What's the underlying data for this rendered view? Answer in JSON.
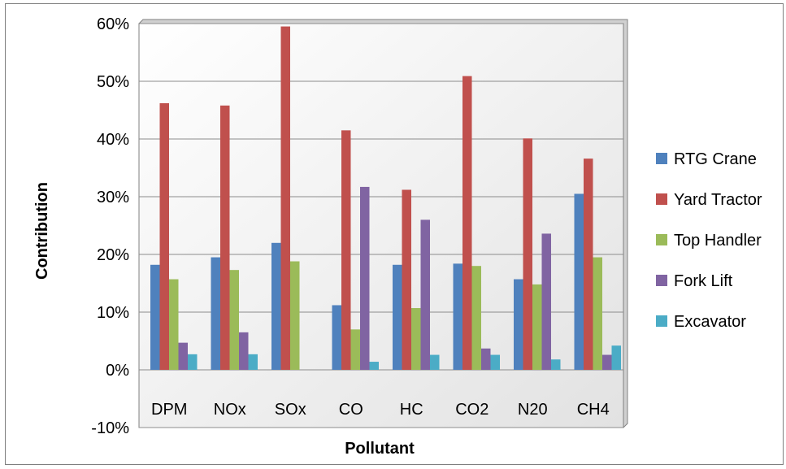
{
  "chart_data": {
    "type": "bar",
    "title": "",
    "xlabel": "Pollutant",
    "ylabel": "Contribution",
    "ylim": [
      -0.1,
      0.6
    ],
    "yticks": [
      -0.1,
      0,
      0.1,
      0.2,
      0.3,
      0.4,
      0.5,
      0.6
    ],
    "ytick_labels": [
      "-10%",
      "0%",
      "10%",
      "20%",
      "30%",
      "40%",
      "50%",
      "60%"
    ],
    "grid": true,
    "legend_position": "right",
    "categories": [
      "DPM",
      "NOx",
      "SOx",
      "CO",
      "HC",
      "CO2",
      "N20",
      "CH4"
    ],
    "series": [
      {
        "name": "RTG Crane",
        "color": "#4F81BD",
        "values": [
          0.182,
          0.195,
          0.22,
          0.112,
          0.182,
          0.184,
          0.157,
          0.305
        ]
      },
      {
        "name": "Yard Tractor",
        "color": "#C0504D",
        "values": [
          0.462,
          0.458,
          0.595,
          0.415,
          0.312,
          0.509,
          0.401,
          0.366
        ]
      },
      {
        "name": "Top Handler",
        "color": "#9BBB59",
        "values": [
          0.157,
          0.173,
          0.188,
          0.07,
          0.107,
          0.18,
          0.148,
          0.195
        ]
      },
      {
        "name": "Fork Lift",
        "color": "#8064A2",
        "values": [
          0.047,
          0.065,
          0.0,
          0.317,
          0.26,
          0.037,
          0.236,
          0.026
        ]
      },
      {
        "name": "Excavator",
        "color": "#4BACC6",
        "values": [
          0.027,
          0.027,
          0.0,
          0.014,
          0.026,
          0.026,
          0.018,
          0.042
        ]
      }
    ]
  }
}
